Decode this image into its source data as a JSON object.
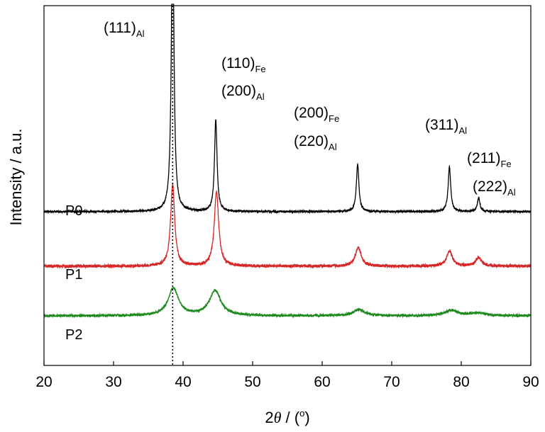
{
  "chart_data": {
    "type": "line",
    "xlabel": {
      "pre": "2",
      "theta": "θ",
      "post": " / (",
      "sup": "o",
      "close": ")"
    },
    "ylabel": "Intensity / a.u.",
    "xlim": [
      20,
      90
    ],
    "xticks": [
      20,
      30,
      40,
      50,
      60,
      70,
      80,
      90
    ],
    "y_ticks_labeled": false,
    "grid": false,
    "reference_line": {
      "x": 38.5,
      "style": "dotted"
    },
    "series": [
      {
        "name": "P0",
        "color": "#000000",
        "baseline": 0.62,
        "noise": 0.004,
        "peaks": [
          {
            "x": 38.5,
            "height": 1.2,
            "width": 0.22
          },
          {
            "x": 44.7,
            "height": 0.37,
            "width": 0.22
          },
          {
            "x": 65.1,
            "height": 0.19,
            "width": 0.22
          },
          {
            "x": 78.3,
            "height": 0.18,
            "width": 0.22
          },
          {
            "x": 82.5,
            "height": 0.055,
            "width": 0.22
          }
        ]
      },
      {
        "name": "P1",
        "color": "#d62728",
        "baseline": 0.4,
        "noise": 0.006,
        "peaks": [
          {
            "x": 38.5,
            "height": 0.33,
            "width": 0.35
          },
          {
            "x": 44.8,
            "height": 0.3,
            "width": 0.38
          },
          {
            "x": 65.2,
            "height": 0.075,
            "width": 0.5
          },
          {
            "x": 78.3,
            "height": 0.06,
            "width": 0.5
          },
          {
            "x": 82.5,
            "height": 0.035,
            "width": 0.5
          }
        ]
      },
      {
        "name": "P2",
        "color": "#1e8a1e",
        "baseline": 0.2,
        "noise": 0.005,
        "peaks": [
          {
            "x": 38.6,
            "height": 0.11,
            "width": 0.9
          },
          {
            "x": 44.6,
            "height": 0.1,
            "width": 1.0
          },
          {
            "x": 65.3,
            "height": 0.025,
            "width": 1.0
          },
          {
            "x": 78.6,
            "height": 0.022,
            "width": 1.1
          },
          {
            "x": 82.4,
            "height": 0.012,
            "width": 1.1
          }
        ]
      }
    ],
    "annotations": [
      {
        "main": "(111)",
        "sub": "Al"
      },
      {
        "main": "(110)",
        "sub": "Fe"
      },
      {
        "main": "(200)",
        "sub": "Al"
      },
      {
        "main": "(200)",
        "sub": "Fe"
      },
      {
        "main": "(220)",
        "sub": "Al"
      },
      {
        "main": "(311)",
        "sub": "Al"
      },
      {
        "main": "(211)",
        "sub": "Fe"
      },
      {
        "main": "(222)",
        "sub": "Al"
      }
    ]
  }
}
